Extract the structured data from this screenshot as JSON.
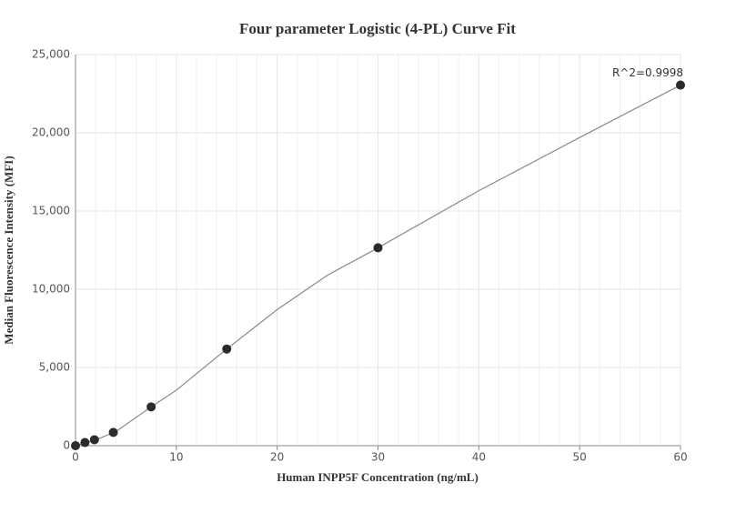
{
  "chart_data": {
    "type": "scatter",
    "title": "Four parameter Logistic (4-PL) Curve Fit",
    "x_label": "Human INPP5F Concentration (ng/mL)",
    "y_label": "Median Fluorescence Intensity (MFI)",
    "annotation": "R^2=0.9998",
    "xlim": [
      0,
      60
    ],
    "xticks": [
      0,
      10,
      20,
      30,
      40,
      50,
      60
    ],
    "ylim": [
      0,
      25000
    ],
    "yticks": [
      0,
      {
        "value": 5000,
        "label": "5,000"
      },
      {
        "value": 10000,
        "label": "10,000"
      },
      {
        "value": 15000,
        "label": "15,000"
      },
      {
        "value": 20000,
        "label": "20,000"
      },
      {
        "value": 25000,
        "label": "25,000"
      }
    ],
    "grid": true,
    "series": [
      {
        "mode": "line",
        "color": "#888888",
        "x": [
          0,
          2,
          4,
          7.5,
          10,
          15,
          20,
          25,
          30,
          40,
          50,
          60
        ],
        "values": [
          0,
          370,
          900,
          2480,
          3550,
          6180,
          8700,
          10900,
          12650,
          16300,
          19700,
          23050
        ]
      },
      {
        "mode": "markers",
        "color": "#2b2b2b",
        "x": [
          0,
          0.938,
          1.875,
          3.75,
          7.5,
          15,
          30,
          60
        ],
        "values": [
          0,
          200,
          380,
          850,
          2480,
          6180,
          12650,
          23050
        ]
      }
    ]
  }
}
